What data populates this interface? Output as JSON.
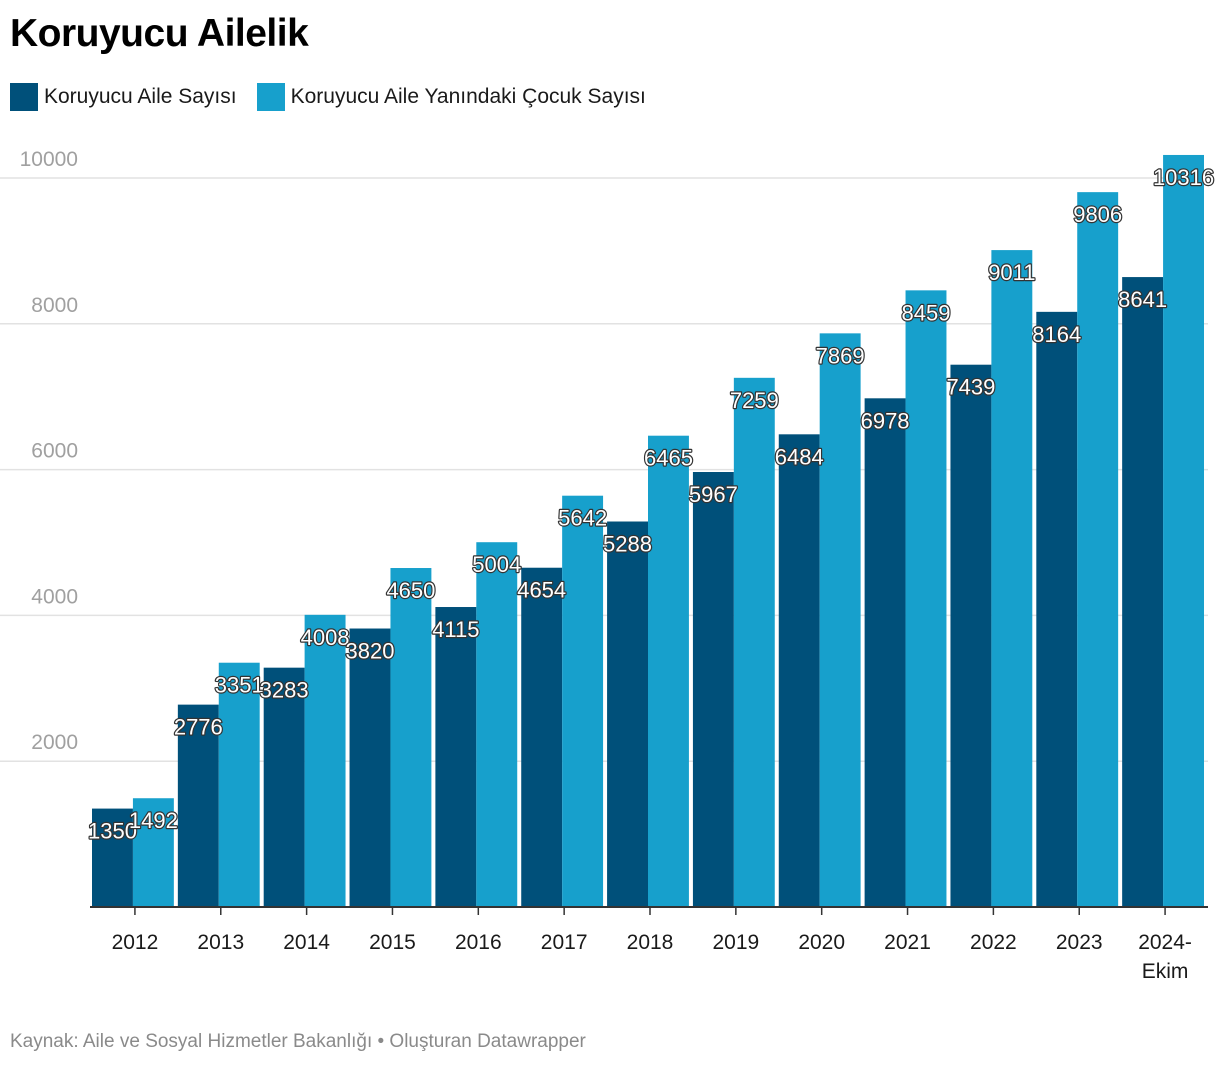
{
  "chart_data": {
    "type": "bar",
    "title": "Koruyucu Ailelik",
    "categories": [
      "2012",
      "2013",
      "2014",
      "2015",
      "2016",
      "2017",
      "2018",
      "2019",
      "2020",
      "2021",
      "2022",
      "2023",
      "2024-Ekim"
    ],
    "category_lines": [
      [
        "2012"
      ],
      [
        "2013"
      ],
      [
        "2014"
      ],
      [
        "2015"
      ],
      [
        "2016"
      ],
      [
        "2017"
      ],
      [
        "2018"
      ],
      [
        "2019"
      ],
      [
        "2020"
      ],
      [
        "2021"
      ],
      [
        "2022"
      ],
      [
        "2023"
      ],
      [
        "2024-",
        "Ekim"
      ]
    ],
    "series": [
      {
        "name": "Koruyucu Aile Sayısı",
        "color": "#00507a",
        "values": [
          1350,
          2776,
          3283,
          3820,
          4115,
          4654,
          5288,
          5967,
          6484,
          6978,
          7439,
          8164,
          8641
        ]
      },
      {
        "name": "Koruyucu Aile Yanındaki Çocuk Sayısı",
        "color": "#17a0cc",
        "values": [
          1492,
          3351,
          4008,
          4650,
          5004,
          5642,
          6465,
          7259,
          7869,
          8459,
          9011,
          9806,
          10316
        ]
      }
    ],
    "yticks": [
      2000,
      4000,
      6000,
      8000,
      10000
    ],
    "ylim": [
      0,
      10316
    ],
    "xlabel": "",
    "ylabel": "",
    "grid": true,
    "legend": "top-left"
  },
  "footer": {
    "text": "Kaynak: Aile ve Sosyal Hizmetler Bakanlığı • Oluşturan Datawrapper"
  }
}
